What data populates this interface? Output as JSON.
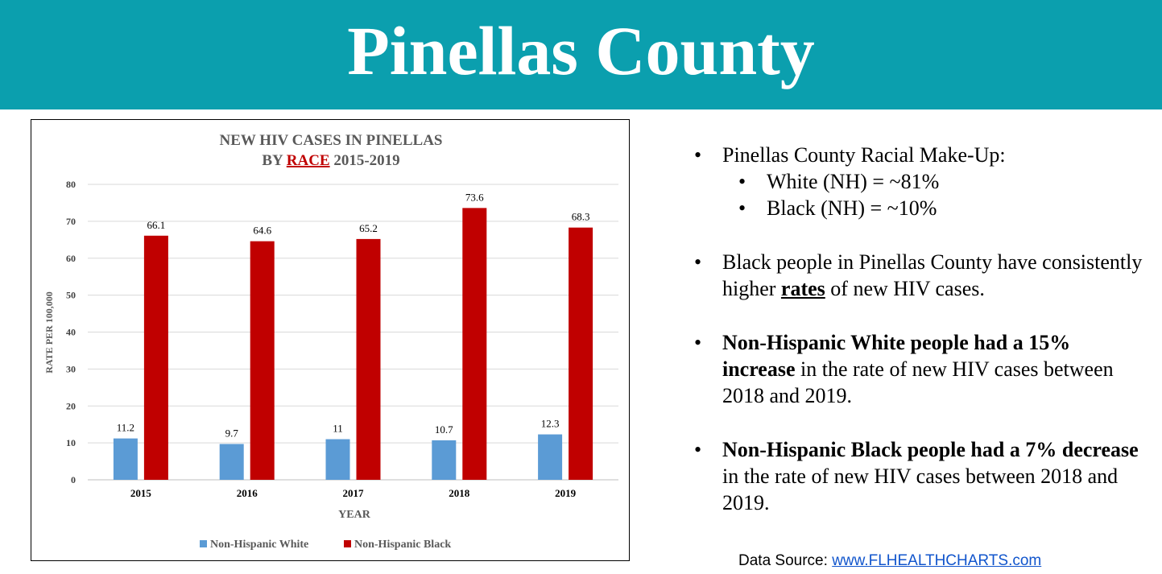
{
  "header": {
    "title": "Pinellas County"
  },
  "chart_data": {
    "type": "bar",
    "title_line1": "NEW HIV CASES IN PINELLAS",
    "title_by": "BY",
    "title_race": "RACE",
    "title_years": "2015-2019",
    "categories": [
      "2015",
      "2016",
      "2017",
      "2018",
      "2019"
    ],
    "series": [
      {
        "name": "Non-Hispanic White",
        "values": [
          11.2,
          9.7,
          11,
          10.7,
          12.3
        ],
        "color": "#5b9bd5"
      },
      {
        "name": "Non-Hispanic Black",
        "values": [
          66.1,
          64.6,
          65.2,
          73.6,
          68.3
        ],
        "color": "#c00000"
      }
    ],
    "xlabel": "YEAR",
    "ylabel": "RATE PER 100,000",
    "ylim": [
      0,
      80
    ],
    "yticks": [
      0,
      10,
      20,
      30,
      40,
      50,
      60,
      70,
      80
    ],
    "grid": true,
    "legend": "bottom"
  },
  "bullets": {
    "b1": "Pinellas County Racial Make-Up:",
    "b1_sub1": "White (NH) = ~81%",
    "b1_sub2": "Black (NH) = ~10%",
    "b2_pre": "Black people in Pinellas County have consistently higher",
    "b2_bold": "rates",
    "b2_post": "of new HIV cases.",
    "b3_bold": "Non-Hispanic White people had a 15% increase",
    "b3_rest": "in the rate of new HIV cases between 2018 and 2019.",
    "b4_bold": "Non-Hispanic Black people had a 7% decrease",
    "b4_rest": "in the rate of new HIV cases between 2018 and 2019.",
    "bullet_char": "•"
  },
  "source": {
    "label": "Data Source:",
    "link": "www.FLHEALTHCHARTS.com"
  }
}
